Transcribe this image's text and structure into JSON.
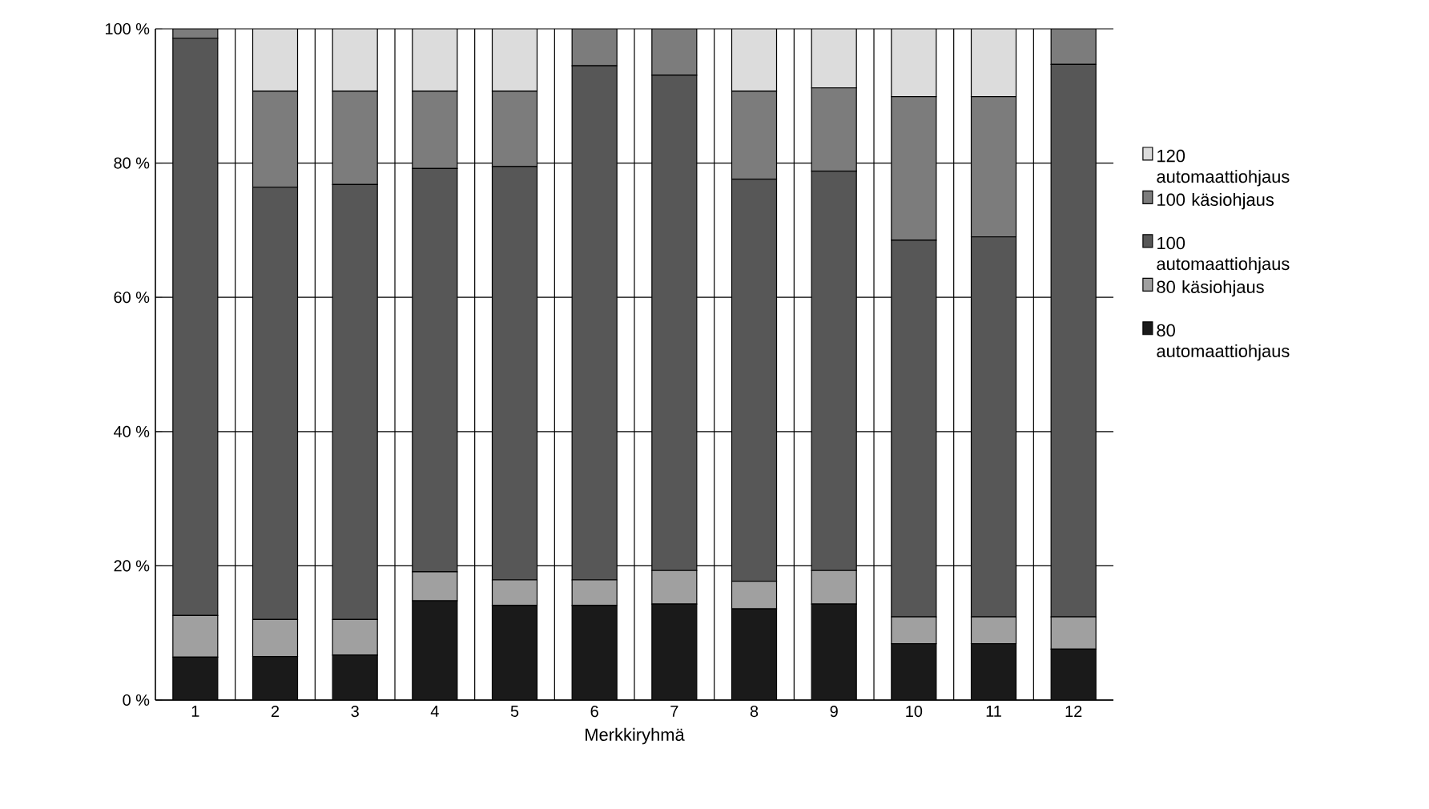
{
  "chart_data": {
    "type": "bar",
    "stacked": true,
    "xlabel": "Merkkiryhmä",
    "categories": [
      "1",
      "2",
      "3",
      "4",
      "5",
      "6",
      "7",
      "8",
      "9",
      "10",
      "11",
      "12"
    ],
    "series": [
      {
        "name": "80 automaattiohjaus",
        "color": "#1a1a1a",
        "values": [
          6.4,
          6.5,
          6.7,
          14.8,
          14.1,
          14.1,
          14.3,
          13.6,
          14.3,
          8.4,
          8.4,
          7.6
        ]
      },
      {
        "name": "80 käsiohjaus",
        "color": "#a0a0a0",
        "values": [
          6.2,
          5.5,
          5.3,
          4.3,
          3.8,
          3.8,
          5.0,
          4.1,
          5.0,
          4.0,
          4.0,
          4.8
        ]
      },
      {
        "name": "100 automaattiohjaus",
        "color": "#575757",
        "values": [
          86.0,
          64.4,
          64.8,
          60.1,
          61.6,
          76.6,
          73.8,
          59.9,
          59.5,
          56.1,
          56.6,
          82.3
        ]
      },
      {
        "name": "100 käsiohjaus",
        "color": "#7c7c7c",
        "values": [
          1.4,
          14.3,
          13.9,
          11.5,
          11.2,
          5.5,
          6.9,
          13.1,
          12.4,
          21.4,
          20.9,
          5.3
        ]
      },
      {
        "name": "120 automaattiohjaus",
        "color": "#dcdcdc",
        "values": [
          0,
          9.3,
          9.3,
          9.3,
          9.3,
          0,
          0,
          9.3,
          8.8,
          10.1,
          10.1,
          0
        ]
      }
    ],
    "ylim": [
      0,
      100
    ],
    "yticks": [
      {
        "value": 0,
        "label": "0 %"
      },
      {
        "value": 20,
        "label": "20 %"
      },
      {
        "value": 40,
        "label": "40 %"
      },
      {
        "value": 60,
        "label": "60 %"
      },
      {
        "value": 80,
        "label": "80 %"
      },
      {
        "value": 100,
        "label": "100 %"
      }
    ],
    "grid": true,
    "legend": "right"
  }
}
